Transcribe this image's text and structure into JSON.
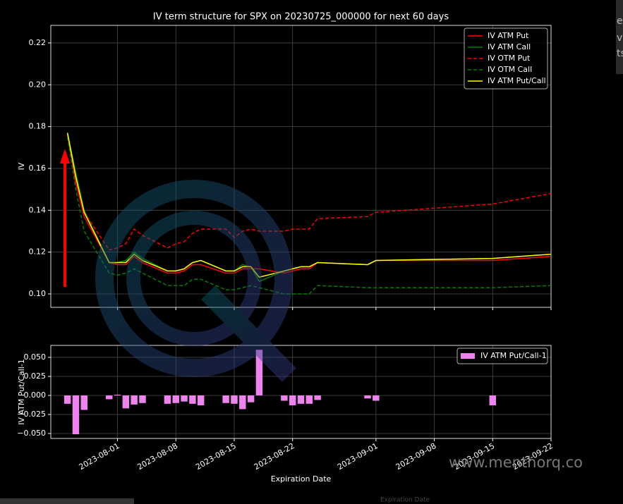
{
  "chart_data": [
    {
      "type": "line",
      "title": "IV term structure for SPX on 20230725_000000 for next 60 days",
      "y_label": "IV",
      "x": [
        "2023-07-26",
        "2023-07-27",
        "2023-07-28",
        "2023-07-31",
        "2023-08-01",
        "2023-08-02",
        "2023-08-03",
        "2023-08-04",
        "2023-08-07",
        "2023-08-08",
        "2023-08-09",
        "2023-08-10",
        "2023-08-11",
        "2023-08-14",
        "2023-08-15",
        "2023-08-16",
        "2023-08-17",
        "2023-08-18",
        "2023-08-21",
        "2023-08-22",
        "2023-08-23",
        "2023-08-24",
        "2023-08-25",
        "2023-08-31",
        "2023-09-01",
        "2023-09-15",
        "2023-09-22"
      ],
      "xlim": [
        "2023-07-24",
        "2023-09-22"
      ],
      "ylim": [
        0.0936,
        0.2284
      ],
      "yticks": [
        {
          "value": 0.1,
          "label": "0.10"
        },
        0.12,
        0.14,
        0.16,
        0.18,
        {
          "value": 0.2,
          "label": "0.20"
        },
        0.22
      ],
      "grid": true,
      "legend": "upper right",
      "series": [
        {
          "name": "IV ATM Put",
          "color": "#ff0000",
          "dashed": false,
          "values": [
            0.177,
            0.153,
            0.137,
            0.115,
            0.114,
            0.114,
            0.118,
            0.115,
            0.11,
            0.11,
            0.111,
            0.114,
            0.114,
            0.11,
            0.11,
            0.112,
            0.112,
            0.112,
            0.11,
            0.111,
            0.112,
            0.112,
            0.115,
            0.114,
            0.116,
            0.116,
            0.118
          ]
        },
        {
          "name": "IV ATM Call",
          "color": "#008000",
          "dashed": false,
          "values": [
            0.177,
            0.158,
            0.14,
            0.115,
            0.115,
            0.116,
            0.12,
            0.117,
            0.111,
            0.111,
            0.112,
            0.115,
            0.116,
            0.111,
            0.111,
            0.114,
            0.113,
            0.106,
            0.111,
            0.112,
            0.113,
            0.113,
            0.115,
            0.114,
            0.116,
            0.117,
            0.119
          ]
        },
        {
          "name": "IV OTM Put",
          "color": "#ff0000",
          "dashed": true,
          "values": [
            0.176,
            0.155,
            0.139,
            0.121,
            0.122,
            0.124,
            0.131,
            0.128,
            0.122,
            0.124,
            0.125,
            0.129,
            0.131,
            0.131,
            0.127,
            0.13,
            0.131,
            0.13,
            0.13,
            0.131,
            0.131,
            0.131,
            0.136,
            0.137,
            0.139,
            0.143,
            0.148
          ]
        },
        {
          "name": "IV OTM Call",
          "color": "#008000",
          "dashed": true,
          "values": [
            0.175,
            0.15,
            0.13,
            0.11,
            0.109,
            0.11,
            0.112,
            0.11,
            0.104,
            0.104,
            0.104,
            0.107,
            0.107,
            0.102,
            0.102,
            0.103,
            0.104,
            0.103,
            0.1,
            0.1,
            0.1,
            0.1,
            0.104,
            0.103,
            0.103,
            0.103,
            0.104
          ]
        },
        {
          "name": "IV ATM Put/Call",
          "color": "#ffff00",
          "dashed": false,
          "values": [
            0.177,
            0.156,
            0.139,
            0.115,
            0.115,
            0.115,
            0.119,
            0.116,
            0.111,
            0.111,
            0.112,
            0.115,
            0.116,
            0.111,
            0.111,
            0.113,
            0.113,
            0.108,
            0.111,
            0.112,
            0.113,
            0.113,
            0.115,
            0.114,
            0.116,
            0.117,
            0.119
          ]
        }
      ]
    },
    {
      "type": "bar",
      "y_label": "IV ATM Put/Call-1",
      "x_label": "Expiration Date",
      "x": [
        "2023-07-26",
        "2023-07-27",
        "2023-07-28",
        "2023-07-31",
        "2023-08-01",
        "2023-08-02",
        "2023-08-03",
        "2023-08-04",
        "2023-08-07",
        "2023-08-08",
        "2023-08-09",
        "2023-08-10",
        "2023-08-11",
        "2023-08-14",
        "2023-08-15",
        "2023-08-16",
        "2023-08-17",
        "2023-08-18",
        "2023-08-21",
        "2023-08-22",
        "2023-08-23",
        "2023-08-24",
        "2023-08-25",
        "2023-08-31",
        "2023-09-01",
        "2023-09-15",
        "2023-09-22"
      ],
      "xlim": [
        "2023-07-24",
        "2023-09-22"
      ],
      "xticks": [
        "2023-08-01",
        "2023-08-08",
        "2023-08-15",
        "2023-08-22",
        "2023-09-01",
        "2023-09-08",
        "2023-09-15",
        "2023-09-22"
      ],
      "ylim": [
        -0.0565,
        0.0657
      ],
      "yticks": [
        {
          "value": -0.05,
          "label": "−0.050"
        },
        {
          "value": -0.025,
          "label": "−0.025"
        },
        {
          "value": 0,
          "label": "0.000"
        },
        {
          "value": 0.025,
          "label": "0.025"
        },
        {
          "value": 0.05,
          "label": "0.050"
        }
      ],
      "grid": true,
      "legend": "upper right",
      "series": [
        {
          "name": "IV ATM Put/Call-1",
          "color": "#ee82ee",
          "values": [
            -0.011,
            -0.051,
            -0.019,
            -0.005,
            0.001,
            -0.017,
            -0.012,
            -0.01,
            -0.011,
            -0.01,
            -0.008,
            -0.011,
            -0.013,
            -0.01,
            -0.011,
            -0.018,
            -0.009,
            0.06,
            -0.007,
            -0.013,
            -0.011,
            -0.011,
            -0.006,
            -0.004,
            -0.007,
            -0.013,
            0
          ]
        }
      ]
    }
  ],
  "watermark": "www.menthorq.co",
  "background_text": [
    "es",
    "ve",
    "ts",
    "Expiration Date"
  ]
}
